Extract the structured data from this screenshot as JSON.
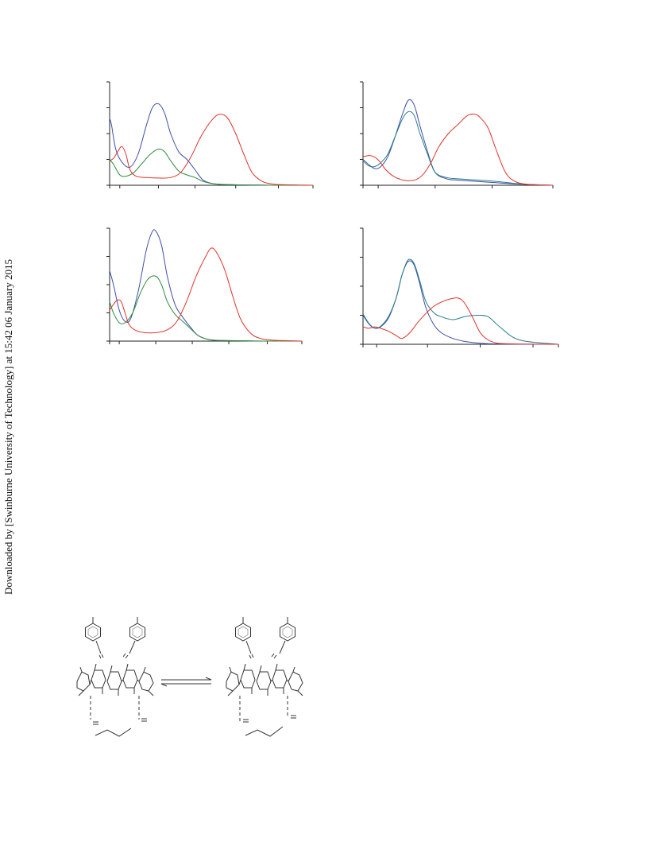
{
  "sidebar": {
    "download_note": "Downloaded by [Swinburne University of Technology] at 15:42 06 January 2015"
  },
  "colors": {
    "blue": "#3d4fa6",
    "green": "#2e8b3e",
    "red": "#e0342e",
    "teal": "#2a7d8a",
    "axis": "#222222",
    "scheme": "#333333"
  },
  "scheme_icons": [
    "calixarene-left-icon",
    "equilibrium-arrows-icon",
    "calixarene-right-icon"
  ],
  "chart_data": [
    {
      "type": "line",
      "panel": "top-left",
      "xlim": [
        0,
        10
      ],
      "ylim": [
        0,
        4
      ],
      "xticks": [
        0,
        0.5,
        2.4,
        4.2,
        6.2,
        8.3,
        10
      ],
      "yticks": [
        0,
        1,
        2,
        3,
        4
      ],
      "series": [
        {
          "color": "blue",
          "x": [
            0,
            0.1,
            0.3,
            0.6,
            1.0,
            1.4,
            1.8,
            2.1,
            2.4,
            2.7,
            3.0,
            3.4,
            3.8,
            4.2,
            4.6,
            5.2,
            6,
            7,
            8,
            10
          ],
          "y": [
            2.6,
            2.3,
            1.4,
            0.9,
            0.7,
            1.2,
            2.3,
            3.0,
            3.15,
            2.8,
            2.0,
            1.3,
            1.0,
            0.6,
            0.2,
            0.05,
            0.02,
            0.01,
            0,
            0
          ]
        },
        {
          "color": "green",
          "x": [
            0,
            0.2,
            0.5,
            0.8,
            1.2,
            1.6,
            2.0,
            2.4,
            2.7,
            3.0,
            3.4,
            3.8,
            4.2,
            4.6,
            5.2,
            6,
            7,
            8,
            10
          ],
          "y": [
            1.0,
            0.8,
            0.4,
            0.35,
            0.5,
            0.85,
            1.2,
            1.4,
            1.3,
            0.95,
            0.55,
            0.4,
            0.3,
            0.15,
            0.05,
            0.02,
            0.01,
            0,
            0
          ]
        },
        {
          "color": "red",
          "x": [
            0,
            0.2,
            0.4,
            0.6,
            0.8,
            1.0,
            1.3,
            1.8,
            2.4,
            3.0,
            3.5,
            4.0,
            4.5,
            5.0,
            5.4,
            5.8,
            6.2,
            6.6,
            7.0,
            7.5,
            8.0,
            8.5,
            10
          ],
          "y": [
            0.95,
            1.05,
            1.3,
            1.5,
            1.2,
            0.6,
            0.35,
            0.3,
            0.28,
            0.3,
            0.5,
            1.1,
            1.9,
            2.5,
            2.75,
            2.6,
            2.0,
            1.2,
            0.5,
            0.15,
            0.05,
            0.02,
            0
          ]
        }
      ]
    },
    {
      "type": "line",
      "panel": "top-right",
      "xlim": [
        0,
        10
      ],
      "ylim": [
        0,
        4
      ],
      "xticks": [
        0,
        0.8,
        3.8,
        6.8,
        10
      ],
      "yticks": [
        0,
        1,
        2,
        3,
        4
      ],
      "series": [
        {
          "color": "blue",
          "x": [
            0,
            0.3,
            0.6,
            0.9,
            1.3,
            1.7,
            2.1,
            2.4,
            2.7,
            3.0,
            3.4,
            3.8,
            4.4,
            5,
            6,
            7,
            8,
            9,
            10
          ],
          "y": [
            1.0,
            0.8,
            0.65,
            0.7,
            1.1,
            1.9,
            2.8,
            3.3,
            3.1,
            2.3,
            1.3,
            0.5,
            0.25,
            0.2,
            0.15,
            0.1,
            0.05,
            0.02,
            0
          ]
        },
        {
          "color": "teal",
          "x": [
            0,
            0.3,
            0.6,
            0.9,
            1.3,
            1.7,
            2.1,
            2.4,
            2.7,
            3.0,
            3.4,
            3.8,
            4.4,
            5,
            6,
            7,
            8,
            9,
            10
          ],
          "y": [
            0.95,
            0.75,
            0.72,
            0.85,
            1.2,
            1.9,
            2.6,
            2.85,
            2.7,
            2.0,
            1.2,
            0.5,
            0.3,
            0.25,
            0.2,
            0.15,
            0.07,
            0.02,
            0
          ]
        },
        {
          "color": "red",
          "x": [
            0,
            0.3,
            0.6,
            0.9,
            1.2,
            1.6,
            2.0,
            2.4,
            2.8,
            3.2,
            3.6,
            4.0,
            4.5,
            5.0,
            5.5,
            5.9,
            6.2,
            6.6,
            7.0,
            7.5,
            8.0,
            8.5,
            9,
            10
          ],
          "y": [
            1.1,
            1.15,
            1.1,
            0.9,
            0.6,
            0.35,
            0.22,
            0.18,
            0.22,
            0.45,
            0.9,
            1.5,
            2.0,
            2.35,
            2.7,
            2.75,
            2.6,
            2.2,
            1.4,
            0.5,
            0.15,
            0.05,
            0.02,
            0
          ]
        }
      ]
    },
    {
      "type": "line",
      "panel": "bottom-left",
      "xlim": [
        0,
        10
      ],
      "ylim": [
        0,
        4
      ],
      "xticks": [
        0,
        0.5,
        2.4,
        4.3,
        6.2,
        8.2,
        10
      ],
      "yticks": [
        0,
        1,
        2,
        3,
        4
      ],
      "series": [
        {
          "color": "blue",
          "x": [
            0,
            0.2,
            0.5,
            0.8,
            1.1,
            1.5,
            1.9,
            2.2,
            2.4,
            2.7,
            3.0,
            3.4,
            3.8,
            4.2,
            4.6,
            5.2,
            6,
            7,
            8,
            10
          ],
          "y": [
            2.5,
            2.0,
            1.1,
            0.7,
            0.8,
            1.8,
            3.2,
            3.85,
            3.9,
            3.4,
            2.3,
            1.3,
            0.85,
            0.5,
            0.2,
            0.05,
            0.02,
            0.01,
            0,
            0
          ]
        },
        {
          "color": "green",
          "x": [
            0,
            0.2,
            0.5,
            0.8,
            1.2,
            1.6,
            2.0,
            2.4,
            2.7,
            3.0,
            3.4,
            3.8,
            4.2,
            4.6,
            5.2,
            6,
            7,
            8,
            10
          ],
          "y": [
            1.4,
            1.0,
            0.65,
            0.65,
            1.0,
            1.7,
            2.2,
            2.3,
            2.0,
            1.4,
            0.95,
            0.7,
            0.45,
            0.2,
            0.05,
            0.02,
            0.01,
            0,
            0
          ]
        },
        {
          "color": "red",
          "x": [
            0,
            0.2,
            0.4,
            0.6,
            0.8,
            1.0,
            1.3,
            1.8,
            2.4,
            3.0,
            3.5,
            4.0,
            4.5,
            5.0,
            5.3,
            5.6,
            6.0,
            6.4,
            6.8,
            7.3,
            7.8,
            8.5,
            10
          ],
          "y": [
            1.1,
            1.3,
            1.45,
            1.4,
            1.0,
            0.6,
            0.4,
            0.3,
            0.3,
            0.4,
            0.7,
            1.4,
            2.3,
            3.0,
            3.3,
            3.1,
            2.5,
            1.6,
            0.8,
            0.3,
            0.1,
            0.03,
            0
          ]
        }
      ]
    },
    {
      "type": "line",
      "panel": "bottom-right",
      "xlim": [
        0,
        10
      ],
      "ylim": [
        0,
        4
      ],
      "xticks": [
        0,
        0.7,
        3.3,
        6.0,
        8.7,
        10
      ],
      "yticks": [
        0,
        1,
        2,
        3,
        4
      ],
      "series": [
        {
          "color": "blue",
          "x": [
            0,
            0.3,
            0.6,
            0.9,
            1.3,
            1.7,
            2.0,
            2.3,
            2.6,
            2.9,
            3.2,
            3.6,
            4.0,
            4.6,
            5.2,
            5.8,
            6.4,
            7,
            8,
            10
          ],
          "y": [
            1.0,
            0.7,
            0.55,
            0.6,
            0.9,
            1.6,
            2.4,
            2.85,
            2.75,
            2.1,
            1.3,
            0.7,
            0.4,
            0.2,
            0.1,
            0.05,
            0.02,
            0.01,
            0,
            0
          ]
        },
        {
          "color": "teal",
          "x": [
            0,
            0.3,
            0.6,
            0.9,
            1.3,
            1.7,
            2.0,
            2.3,
            2.6,
            2.9,
            3.2,
            3.6,
            4.0,
            4.6,
            5.2,
            5.8,
            6.4,
            7,
            8,
            10
          ],
          "y": [
            1.05,
            0.72,
            0.56,
            0.62,
            0.95,
            1.6,
            2.4,
            2.9,
            2.8,
            2.2,
            1.5,
            1.1,
            0.95,
            0.85,
            0.95,
            1.0,
            0.95,
            0.6,
            0.15,
            0
          ]
        },
        {
          "color": "red",
          "x": [
            0,
            0.3,
            0.6,
            0.9,
            1.3,
            1.7,
            2.0,
            2.4,
            2.8,
            3.2,
            3.6,
            4.0,
            4.4,
            4.8,
            5.1,
            5.4,
            5.7,
            6.0,
            6.4,
            6.8,
            7.3,
            8,
            10
          ],
          "y": [
            0.6,
            0.55,
            0.6,
            0.55,
            0.45,
            0.3,
            0.2,
            0.4,
            0.75,
            1.05,
            1.3,
            1.45,
            1.55,
            1.6,
            1.5,
            1.2,
            0.8,
            0.4,
            0.15,
            0.05,
            0.02,
            0.01,
            0
          ]
        }
      ]
    }
  ]
}
